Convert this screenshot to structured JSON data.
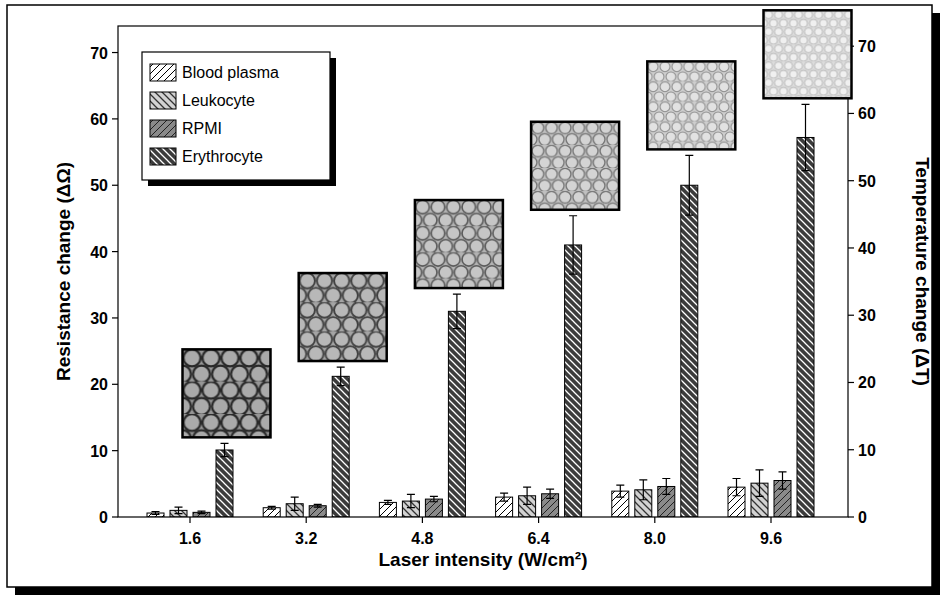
{
  "chart_data": {
    "type": "bar",
    "x_label": "Laser intensity (W/cm²)",
    "y_label": "Resistance change (ΔΩ)",
    "y2_label": "Temperature change (ΔT)",
    "categories": [
      "1.6",
      "3.2",
      "4.8",
      "6.4",
      "8.0",
      "9.6"
    ],
    "series": [
      {
        "name": "Blood plasma",
        "color": "#ffffff",
        "values": [
          0.6,
          1.4,
          2.2,
          3.0,
          3.9,
          4.5
        ],
        "errors": [
          0.2,
          0.2,
          0.3,
          0.6,
          0.9,
          1.3
        ]
      },
      {
        "name": "Leukocyte",
        "color": "#d2d2d2",
        "values": [
          1.0,
          2.0,
          2.4,
          3.2,
          4.1,
          5.1
        ],
        "errors": [
          0.5,
          1.0,
          1.0,
          1.3,
          1.5,
          2.0
        ]
      },
      {
        "name": "RPMI",
        "color": "#8a8a8a",
        "values": [
          0.7,
          1.7,
          2.7,
          3.5,
          4.6,
          5.5
        ],
        "errors": [
          0.2,
          0.2,
          0.4,
          0.7,
          1.2,
          1.3
        ]
      },
      {
        "name": "Erythrocyte",
        "color": "#3c3c3c",
        "values": [
          10.1,
          21.2,
          31.0,
          41.0,
          50.0,
          57.2
        ],
        "errors": [
          1.0,
          1.4,
          2.6,
          4.4,
          4.5,
          5.0
        ]
      }
    ],
    "ylim": [
      0,
      74
    ],
    "yticks": [
      0,
      10,
      20,
      30,
      40,
      50,
      60,
      70
    ],
    "y2lim": [
      0,
      73
    ],
    "y2ticks": [
      0,
      10,
      20,
      30,
      40,
      50,
      60,
      70
    ],
    "grid": false,
    "legend": "upper left"
  }
}
